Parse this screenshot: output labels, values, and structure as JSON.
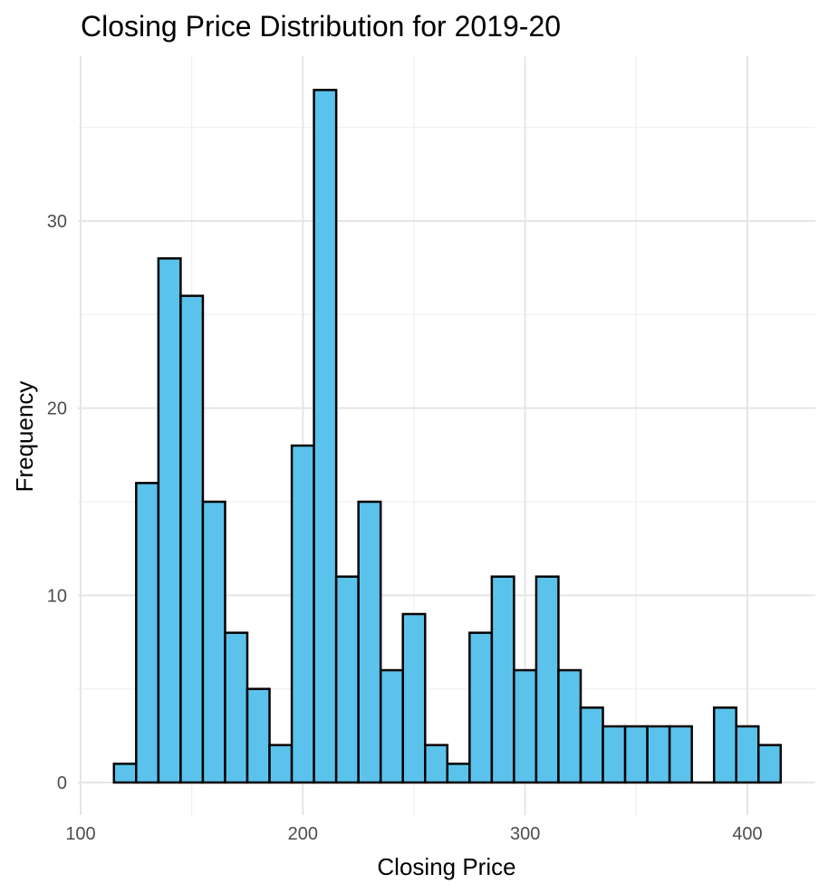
{
  "chart_data": {
    "type": "bar",
    "title": "Closing Price Distribution for 2019-20",
    "xlabel": "Closing Price",
    "ylabel": "Frequency",
    "xlim": [
      100,
      430
    ],
    "ylim": [
      0,
      37
    ],
    "x_ticks": [
      100,
      200,
      300,
      400
    ],
    "y_ticks": [
      0,
      10,
      20,
      30
    ],
    "bin_width": 10,
    "bins": [
      {
        "x_start": 115,
        "x_end": 125,
        "count": 1
      },
      {
        "x_start": 125,
        "x_end": 135,
        "count": 16
      },
      {
        "x_start": 135,
        "x_end": 145,
        "count": 28
      },
      {
        "x_start": 145,
        "x_end": 155,
        "count": 26
      },
      {
        "x_start": 155,
        "x_end": 165,
        "count": 15
      },
      {
        "x_start": 165,
        "x_end": 175,
        "count": 8
      },
      {
        "x_start": 175,
        "x_end": 185,
        "count": 5
      },
      {
        "x_start": 185,
        "x_end": 195,
        "count": 2
      },
      {
        "x_start": 195,
        "x_end": 205,
        "count": 18
      },
      {
        "x_start": 205,
        "x_end": 215,
        "count": 37
      },
      {
        "x_start": 215,
        "x_end": 225,
        "count": 11
      },
      {
        "x_start": 225,
        "x_end": 235,
        "count": 15
      },
      {
        "x_start": 235,
        "x_end": 245,
        "count": 6
      },
      {
        "x_start": 245,
        "x_end": 255,
        "count": 9
      },
      {
        "x_start": 255,
        "x_end": 265,
        "count": 2
      },
      {
        "x_start": 265,
        "x_end": 275,
        "count": 1
      },
      {
        "x_start": 275,
        "x_end": 285,
        "count": 8
      },
      {
        "x_start": 285,
        "x_end": 295,
        "count": 11
      },
      {
        "x_start": 295,
        "x_end": 305,
        "count": 6
      },
      {
        "x_start": 305,
        "x_end": 315,
        "count": 11
      },
      {
        "x_start": 315,
        "x_end": 325,
        "count": 6
      },
      {
        "x_start": 325,
        "x_end": 335,
        "count": 4
      },
      {
        "x_start": 335,
        "x_end": 345,
        "count": 3
      },
      {
        "x_start": 345,
        "x_end": 355,
        "count": 3
      },
      {
        "x_start": 355,
        "x_end": 365,
        "count": 3
      },
      {
        "x_start": 365,
        "x_end": 375,
        "count": 3
      },
      {
        "x_start": 375,
        "x_end": 385,
        "count": 0
      },
      {
        "x_start": 385,
        "x_end": 395,
        "count": 4
      },
      {
        "x_start": 395,
        "x_end": 405,
        "count": 3
      },
      {
        "x_start": 405,
        "x_end": 415,
        "count": 2
      }
    ],
    "grid": true,
    "legend": "none",
    "bar_fill": "#5bc3eb",
    "bar_stroke": "#000000"
  }
}
